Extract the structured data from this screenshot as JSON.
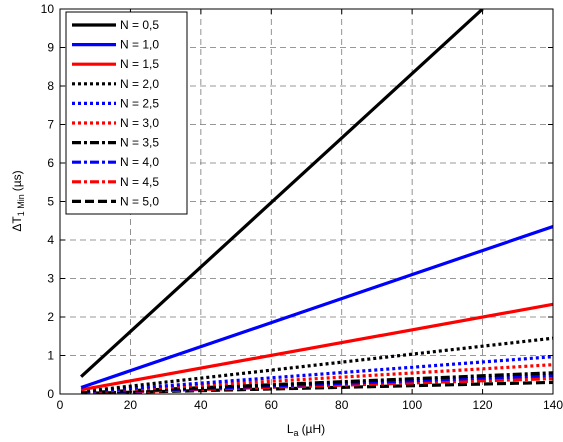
{
  "chart_data": {
    "type": "line",
    "xlabel": "L",
    "xlabel_sub": "a",
    "xlabel_unit": "(µH)",
    "ylabel": "ΔT",
    "ylabel_sub": "1 Min",
    "ylabel_unit": "(µs)",
    "xlim": [
      0,
      140
    ],
    "ylim": [
      0,
      10
    ],
    "xticks": [
      0,
      20,
      40,
      60,
      80,
      100,
      120,
      140
    ],
    "yticks": [
      0,
      1,
      2,
      3,
      4,
      5,
      6,
      7,
      8,
      9,
      10
    ],
    "grid": true,
    "legend_position": "top-left",
    "series": [
      {
        "name": "N = 0,5",
        "color": "#000000",
        "style": "solid",
        "x": [
          6,
          120
        ],
        "y": [
          0.45,
          10.0
        ]
      },
      {
        "name": "N = 1,0",
        "color": "#0000ff",
        "style": "solid",
        "x": [
          6,
          140
        ],
        "y": [
          0.17,
          4.35
        ]
      },
      {
        "name": "N = 1,5",
        "color": "#ff0000",
        "style": "solid",
        "x": [
          6,
          140
        ],
        "y": [
          0.11,
          2.33
        ]
      },
      {
        "name": "N = 2,0",
        "color": "#000000",
        "style": "dotted",
        "x": [
          6,
          140
        ],
        "y": [
          0.06,
          1.45
        ]
      },
      {
        "name": "N = 2,5",
        "color": "#0000ff",
        "style": "dotted",
        "x": [
          6,
          140
        ],
        "y": [
          0.05,
          0.97
        ]
      },
      {
        "name": "N = 3,0",
        "color": "#ff0000",
        "style": "dotted",
        "x": [
          6,
          140
        ],
        "y": [
          0.04,
          0.76
        ]
      },
      {
        "name": "N = 3,5",
        "color": "#000000",
        "style": "dashdot",
        "x": [
          6,
          140
        ],
        "y": [
          0.03,
          0.55
        ]
      },
      {
        "name": "N = 4,0",
        "color": "#0000ff",
        "style": "dashdot",
        "x": [
          6,
          140
        ],
        "y": [
          0.025,
          0.48
        ]
      },
      {
        "name": "N = 4,5",
        "color": "#ff0000",
        "style": "dashdot",
        "x": [
          6,
          140
        ],
        "y": [
          0.02,
          0.4
        ]
      },
      {
        "name": "N = 5,0",
        "color": "#000000",
        "style": "dashed",
        "x": [
          6,
          140
        ],
        "y": [
          0.015,
          0.3
        ]
      }
    ]
  }
}
